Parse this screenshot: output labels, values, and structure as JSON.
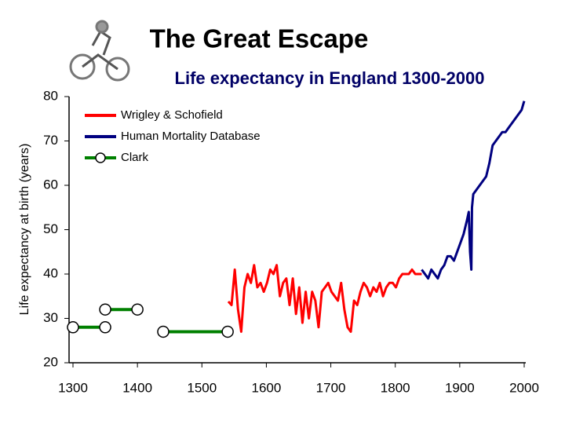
{
  "chart_data": {
    "type": "line",
    "title": "The Great Escape",
    "subtitle": "Life expectancy in England 1300-2000",
    "ylabel": "Life expectancy at birth (years)",
    "xlim": [
      1300,
      2000
    ],
    "xticks": [
      1300,
      1400,
      1500,
      1600,
      1700,
      1800,
      1900,
      2000
    ],
    "ylim": [
      20,
      80
    ],
    "yticks": [
      20,
      30,
      40,
      50,
      60,
      70,
      80
    ],
    "legend": "upper left",
    "series": [
      {
        "name": "Wrigley & Schofield",
        "color": "#ff0000",
        "x": [
          1541,
          1546,
          1551,
          1556,
          1561,
          1566,
          1571,
          1576,
          1581,
          1586,
          1591,
          1596,
          1601,
          1606,
          1611,
          1616,
          1621,
          1626,
          1631,
          1636,
          1641,
          1646,
          1651,
          1656,
          1661,
          1666,
          1671,
          1676,
          1681,
          1686,
          1691,
          1696,
          1701,
          1706,
          1711,
          1716,
          1721,
          1726,
          1731,
          1736,
          1741,
          1746,
          1751,
          1756,
          1761,
          1766,
          1771,
          1776,
          1781,
          1786,
          1791,
          1796,
          1801,
          1806,
          1811,
          1816,
          1821,
          1826,
          1831,
          1836,
          1841
        ],
        "values": [
          33.8,
          33,
          41,
          32,
          27,
          37,
          40,
          38,
          42,
          37,
          38,
          36,
          38,
          41,
          40,
          42,
          35,
          38,
          39,
          33,
          39,
          31,
          37,
          29,
          36,
          30,
          36,
          34,
          28,
          36,
          37,
          38,
          36,
          35,
          34,
          38,
          32,
          28,
          27,
          34,
          33,
          36,
          38,
          37,
          35,
          37,
          36,
          38,
          35,
          37,
          38,
          38,
          37,
          39,
          40,
          40,
          40,
          41,
          40,
          40,
          40
        ]
      },
      {
        "name": "Human Mortality Database",
        "color": "#000080",
        "x": [
          1841,
          1846,
          1851,
          1856,
          1861,
          1866,
          1871,
          1876,
          1881,
          1886,
          1891,
          1896,
          1901,
          1906,
          1911,
          1914,
          1916,
          1918,
          1919,
          1921,
          1926,
          1931,
          1936,
          1941,
          1946,
          1951,
          1956,
          1961,
          1966,
          1971,
          1976,
          1981,
          1986,
          1991,
          1996,
          2000
        ],
        "values": [
          41,
          40,
          39,
          41,
          40,
          39,
          41,
          42,
          44,
          44,
          43,
          45,
          47,
          49,
          52,
          54,
          45,
          41,
          55,
          58,
          59,
          60,
          61,
          62,
          65,
          69,
          70,
          71,
          72,
          72,
          73,
          74,
          75,
          76,
          77,
          79
        ]
      },
      {
        "name": "Clark",
        "color": "#008000",
        "marker": "circle",
        "x": [
          1300,
          1350,
          1350,
          1350,
          1400,
          1400,
          1440,
          1540
        ],
        "values": [
          28,
          28,
          null,
          32,
          32,
          null,
          27,
          27
        ]
      }
    ]
  }
}
